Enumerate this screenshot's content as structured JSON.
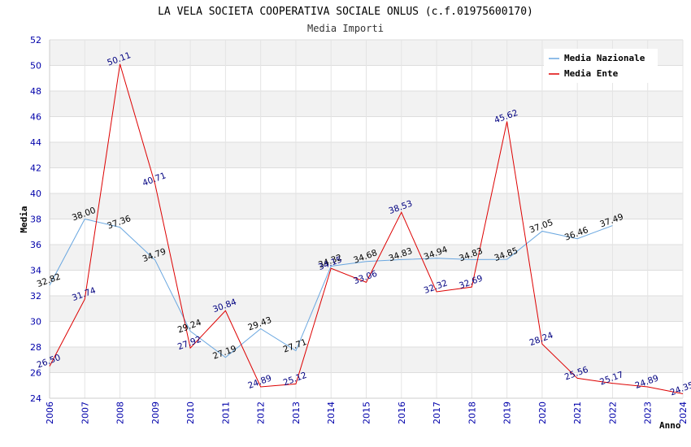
{
  "chart_data": {
    "type": "line",
    "title": "LA VELA SOCIETA COOPERATIVA SOCIALE ONLUS (c.f.01975600170)",
    "subtitle": "Media Importi",
    "xlabel": "Anno",
    "ylabel": "Media",
    "ylim": [
      24,
      52
    ],
    "yticks": [
      24,
      26,
      28,
      30,
      32,
      34,
      36,
      38,
      40,
      42,
      44,
      46,
      48,
      50,
      52
    ],
    "x": [
      "2006",
      "2007",
      "2008",
      "2009",
      "2010",
      "2011",
      "2012",
      "2013",
      "2014",
      "2015",
      "2016",
      "2017",
      "2018",
      "2019",
      "2020",
      "2021",
      "2022",
      "2023",
      "2024"
    ],
    "legend_position": "top-right",
    "grid": true,
    "series": [
      {
        "name": "Media Nazionale",
        "color": "#6aa7e0",
        "values": [
          32.82,
          38.0,
          37.36,
          34.79,
          29.24,
          27.19,
          29.43,
          27.71,
          34.32,
          34.68,
          34.83,
          34.94,
          34.83,
          34.85,
          37.05,
          36.46,
          37.49,
          null,
          null
        ],
        "labels": [
          "32.82",
          "38.00",
          "37.36",
          "34.79",
          "29.24",
          "27.19",
          "29.43",
          "27.71",
          "34.32",
          "34.68",
          "34.83",
          "34.94",
          "34.83",
          "34.85",
          "37.05",
          "36.46",
          "37.49",
          "",
          ""
        ]
      },
      {
        "name": "Media Ente",
        "color": "#dd0000",
        "values": [
          26.5,
          31.74,
          50.11,
          40.71,
          27.92,
          30.84,
          24.89,
          25.12,
          34.15,
          33.06,
          38.53,
          32.32,
          32.69,
          45.62,
          28.24,
          25.56,
          25.17,
          24.89,
          24.35
        ],
        "labels": [
          "26.50",
          "31.74",
          "50.11",
          "40.71",
          "27.92",
          "30.84",
          "24.89",
          "25.12",
          "34.15",
          "33.06",
          "38.53",
          "32.32",
          "32.69",
          "45.62",
          "28.24",
          "25.56",
          "25.17",
          "24.89",
          "24.35"
        ]
      }
    ]
  }
}
